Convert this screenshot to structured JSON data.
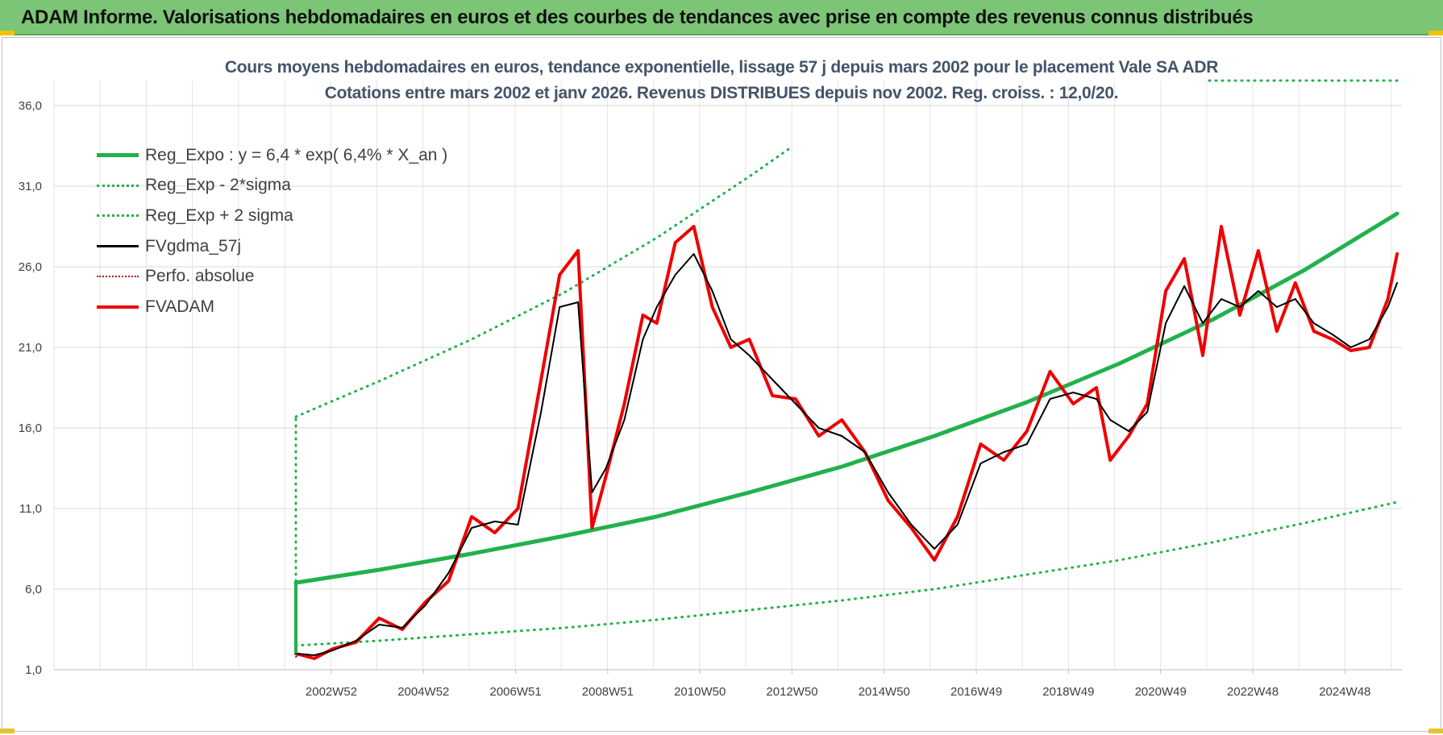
{
  "banner": {
    "text": "ADAM Informe. Valorisations hebdomadaires en euros et des courbes de tendances avec prise en compte des revenus connus distribués"
  },
  "chart_data": {
    "type": "line",
    "title": "Cours moyens hebdomadaires en euros, tendance exponentielle, lissage 57 j depuis mars 2002 pour le placement Vale SA ADR",
    "subtitle": "Cotations entre mars 2002 et janv 2026. Revenus DISTRIBUES depuis nov 2002. Reg. croiss. : 12,0/20.",
    "xlabel": "",
    "ylabel": "",
    "ylim": [
      1.0,
      36.0
    ],
    "yticks": [
      "1,0",
      "6,0",
      "11,0",
      "16,0",
      "21,0",
      "26,0",
      "31,0",
      "36,0"
    ],
    "xticks": [
      "2002W52",
      "2004W52",
      "2006W51",
      "2008W51",
      "2010W50",
      "2012W50",
      "2014W50",
      "2016W49",
      "2018W49",
      "2020W49",
      "2022W48",
      "2024W48"
    ],
    "xrange": [
      2002.2,
      2026.05
    ],
    "grid": true,
    "legend_position": "top-left",
    "series": [
      {
        "name": "Reg_Expo : y = 6,4 * exp( 6,4% *  X_an )",
        "style": "solid",
        "color": "#22b14c",
        "width": 5,
        "x": [
          2002.2,
          2004,
          2006,
          2008,
          2010,
          2012,
          2014,
          2016,
          2018,
          2020,
          2022,
          2024,
          2026
        ],
        "y": [
          6.4,
          7.2,
          8.2,
          9.3,
          10.5,
          12.0,
          13.6,
          15.5,
          17.6,
          20.0,
          22.7,
          25.8,
          29.3
        ]
      },
      {
        "name": "Reg_Exp - 2*sigma",
        "style": "dotted",
        "color": "#22b14c",
        "width": 3,
        "x": [
          2002.2,
          2004,
          2006,
          2008,
          2010,
          2012,
          2014,
          2016,
          2018,
          2020,
          2022,
          2024,
          2026
        ],
        "y": [
          2.5,
          2.8,
          3.2,
          3.6,
          4.1,
          4.7,
          5.3,
          6.0,
          6.9,
          7.8,
          8.9,
          10.1,
          11.4
        ]
      },
      {
        "name": "Reg_Exp + 2 sigma",
        "style": "dotted",
        "color": "#22b14c",
        "width": 3,
        "x": [
          2002.2,
          2004,
          2006,
          2008,
          2010,
          2012,
          2012.85
        ],
        "y": [
          16.7,
          18.9,
          21.5,
          24.4,
          27.8,
          31.6,
          33.3
        ]
      },
      {
        "name": "FVgdma_57j",
        "style": "solid",
        "color": "#000000",
        "width": 2,
        "x": [
          2002.2,
          2002.6,
          2003.0,
          2003.5,
          2004.0,
          2004.5,
          2005.0,
          2005.5,
          2006.0,
          2006.5,
          2007.0,
          2007.5,
          2007.9,
          2008.3,
          2008.6,
          2008.9,
          2009.3,
          2009.7,
          2010.0,
          2010.4,
          2010.8,
          2011.2,
          2011.6,
          2012.0,
          2012.5,
          2013.0,
          2013.5,
          2014.0,
          2014.5,
          2015.0,
          2015.5,
          2016.0,
          2016.5,
          2017.0,
          2017.5,
          2018.0,
          2018.5,
          2019.0,
          2019.5,
          2019.8,
          2020.2,
          2020.6,
          2021.0,
          2021.4,
          2021.8,
          2022.2,
          2022.6,
          2023.0,
          2023.4,
          2023.8,
          2024.2,
          2024.6,
          2025.0,
          2025.4,
          2025.8,
          2026.0
        ],
        "y": [
          2.0,
          1.9,
          2.2,
          2.8,
          3.8,
          3.6,
          5.0,
          7.0,
          9.8,
          10.2,
          10.0,
          17.0,
          23.5,
          23.8,
          12.0,
          13.5,
          16.5,
          21.5,
          23.5,
          25.5,
          26.8,
          24.5,
          21.5,
          20.5,
          19.0,
          17.5,
          16.0,
          15.5,
          14.5,
          12.0,
          10.0,
          8.5,
          10.0,
          13.8,
          14.5,
          15.0,
          17.8,
          18.2,
          17.8,
          16.5,
          15.8,
          17.0,
          22.5,
          24.8,
          22.5,
          24.0,
          23.5,
          24.5,
          23.5,
          24.0,
          22.5,
          21.8,
          21.0,
          21.5,
          23.5,
          25.0
        ]
      },
      {
        "name": "Perfo. absolue",
        "style": "dotted",
        "color": "#c00000",
        "width": 2,
        "x": [
          2002.2,
          2002.25
        ],
        "y": [
          1.8,
          1.9
        ]
      },
      {
        "name": "FVADAM",
        "style": "solid",
        "color": "#ee0000",
        "width": 4,
        "x": [
          2002.2,
          2002.6,
          2003.0,
          2003.5,
          2004.0,
          2004.5,
          2005.0,
          2005.5,
          2006.0,
          2006.5,
          2007.0,
          2007.5,
          2007.9,
          2008.3,
          2008.6,
          2008.9,
          2009.3,
          2009.7,
          2010.0,
          2010.4,
          2010.8,
          2011.2,
          2011.6,
          2012.0,
          2012.5,
          2013.0,
          2013.5,
          2014.0,
          2014.5,
          2015.0,
          2015.5,
          2016.0,
          2016.5,
          2017.0,
          2017.5,
          2018.0,
          2018.5,
          2019.0,
          2019.5,
          2019.8,
          2020.2,
          2020.6,
          2021.0,
          2021.4,
          2021.8,
          2022.2,
          2022.6,
          2023.0,
          2023.4,
          2023.8,
          2024.2,
          2024.6,
          2025.0,
          2025.4,
          2025.8,
          2026.0
        ],
        "y": [
          2.0,
          1.7,
          2.3,
          2.7,
          4.2,
          3.5,
          5.2,
          6.5,
          10.5,
          9.5,
          11.0,
          19.0,
          25.5,
          27.0,
          9.8,
          13.0,
          17.5,
          23.0,
          22.5,
          27.5,
          28.5,
          23.5,
          21.0,
          21.5,
          18.0,
          17.8,
          15.5,
          16.5,
          14.5,
          11.5,
          9.8,
          7.8,
          10.5,
          15.0,
          14.0,
          15.8,
          19.5,
          17.5,
          18.5,
          14.0,
          15.5,
          17.5,
          24.5,
          26.5,
          20.5,
          28.5,
          23.0,
          27.0,
          22.0,
          25.0,
          22.0,
          21.5,
          20.8,
          21.0,
          24.0,
          26.8
        ]
      }
    ]
  }
}
